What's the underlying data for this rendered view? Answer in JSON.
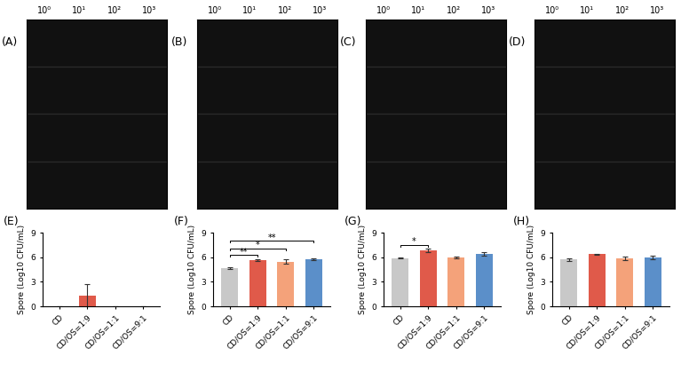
{
  "photo_panels": [
    {
      "label": "(A)",
      "column_labels": [
        "10⁰",
        "10¹",
        "10²",
        "10³"
      ]
    },
    {
      "label": "(B)",
      "column_labels": [
        "10⁰",
        "10¹",
        "10²",
        "10³"
      ]
    },
    {
      "label": "(C)",
      "column_labels": [
        "10⁰",
        "10¹",
        "10²",
        "10³"
      ]
    },
    {
      "label": "(D)",
      "column_labels": [
        "10⁰",
        "10¹",
        "10²",
        "10³"
      ]
    }
  ],
  "chart_data": [
    {
      "type": "bar",
      "title": "(E)",
      "y_label": "Spore (Log10 CFU/mL)",
      "categories": [
        "CD",
        "CD/OS=1:9",
        "CD/OS=1:1",
        "CD/OS=9:1"
      ],
      "values": [
        0,
        1.3,
        0,
        0
      ],
      "errors": [
        0,
        1.4,
        0,
        0
      ],
      "colors": [
        "#c8c8c8",
        "#e05a4a",
        "#f4a27a",
        "#5b8fc9"
      ],
      "ylim": [
        0,
        9
      ],
      "yticks": [
        0,
        3,
        6,
        9
      ],
      "annotations": []
    },
    {
      "type": "bar",
      "title": "(F)",
      "y_label": "Spore (Log10 CFU/mL)",
      "categories": [
        "CD",
        "CD/OS=1:9",
        "CD/OS=1:1",
        "CD/OS=9:1"
      ],
      "values": [
        4.65,
        5.65,
        5.45,
        5.75
      ],
      "errors": [
        0.08,
        0.1,
        0.25,
        0.15
      ],
      "colors": [
        "#c8c8c8",
        "#e05a4a",
        "#f4a27a",
        "#5b8fc9"
      ],
      "ylim": [
        0,
        9
      ],
      "yticks": [
        0,
        3,
        6,
        9
      ],
      "annotations": [
        {
          "pair": [
            "CD",
            "CD/OS=1:9"
          ],
          "text": "**"
        },
        {
          "pair": [
            "CD",
            "CD/OS=1:1"
          ],
          "text": "*"
        },
        {
          "pair": [
            "CD",
            "CD/OS=9:1"
          ],
          "text": "**"
        }
      ]
    },
    {
      "type": "bar",
      "title": "(G)",
      "y_label": "Spore (Log10 CFU/mL)",
      "categories": [
        "CD",
        "CD/OS=1:9",
        "CD/OS=1:1",
        "CD/OS=9:1"
      ],
      "values": [
        5.9,
        6.8,
        5.95,
        6.4
      ],
      "errors": [
        0.03,
        0.2,
        0.08,
        0.2
      ],
      "colors": [
        "#c8c8c8",
        "#e05a4a",
        "#f4a27a",
        "#5b8fc9"
      ],
      "ylim": [
        0,
        9
      ],
      "yticks": [
        0,
        3,
        6,
        9
      ],
      "annotations": [
        {
          "pair": [
            "CD",
            "CD/OS=1:9"
          ],
          "text": "*"
        }
      ]
    },
    {
      "type": "bar",
      "title": "(H)",
      "y_label": "Spore (Log10 CFU/mL)",
      "categories": [
        "CD",
        "CD/OS=1:9",
        "CD/OS=1:1",
        "CD/OS=9:1"
      ],
      "values": [
        5.7,
        6.35,
        5.85,
        6.0
      ],
      "errors": [
        0.2,
        0.05,
        0.25,
        0.2
      ],
      "colors": [
        "#c8c8c8",
        "#e05a4a",
        "#f4a27a",
        "#5b8fc9"
      ],
      "ylim": [
        0,
        9
      ],
      "yticks": [
        0,
        3,
        6,
        9
      ],
      "annotations": []
    }
  ]
}
